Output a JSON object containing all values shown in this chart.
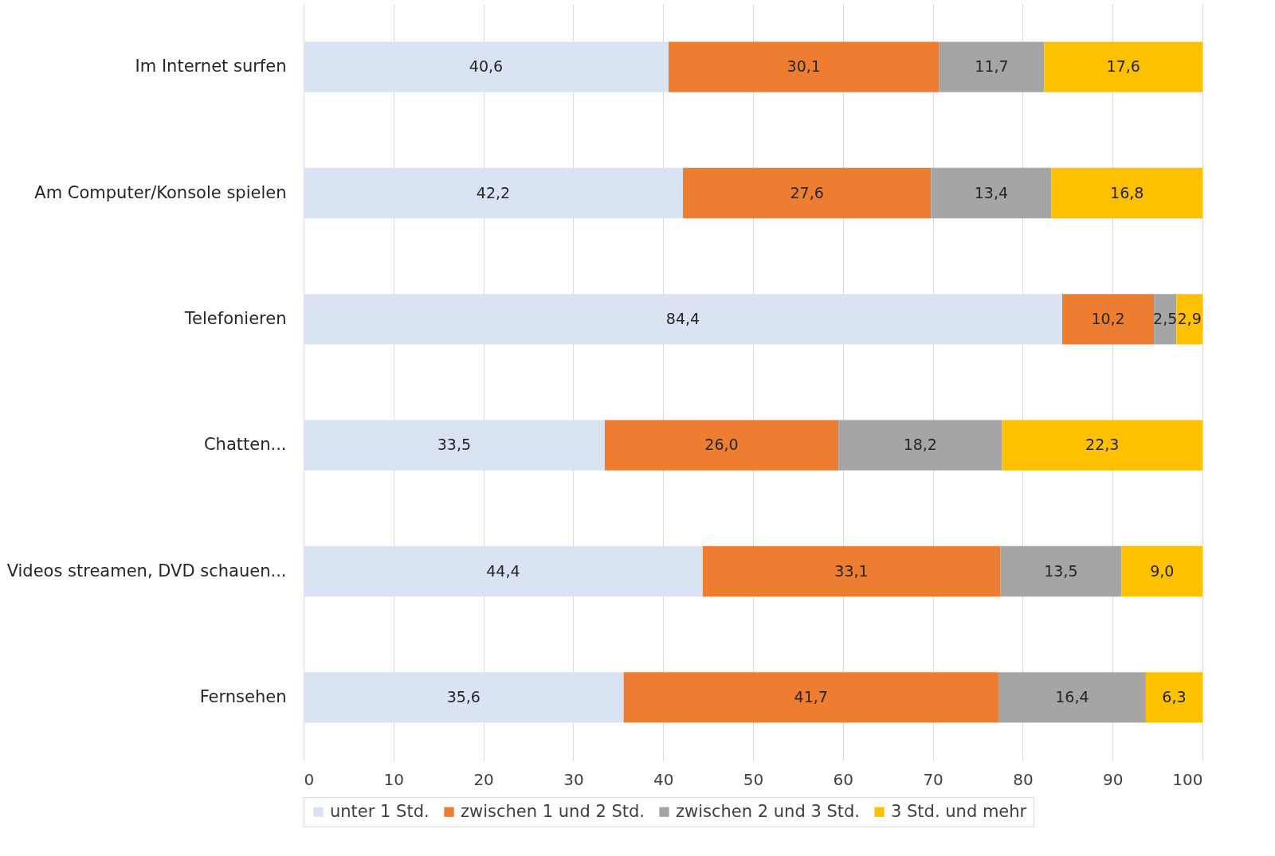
{
  "chart_data": {
    "type": "bar",
    "orientation": "horizontal",
    "stacked": true,
    "categories": [
      "Im Internet surfen",
      "Am Computer/Konsole spielen",
      "Telefonieren",
      "Chatten...",
      "Videos streamen, DVD schauen...",
      "Fernsehen"
    ],
    "series": [
      {
        "name": "unter 1 Std.",
        "color": "#dae3f3",
        "values": [
          40.6,
          42.2,
          84.4,
          33.5,
          44.4,
          35.6
        ],
        "value_labels": [
          "40,6",
          "42,2",
          "84,4",
          "33,5",
          "44,4",
          "35,6"
        ]
      },
      {
        "name": "zwischen 1 und 2 Std.",
        "color": "#ed7d31",
        "values": [
          30.1,
          27.6,
          10.2,
          26.0,
          33.1,
          41.7
        ],
        "value_labels": [
          "30,1",
          "27,6",
          "10,2",
          "26,0",
          "33,1",
          "41,7"
        ]
      },
      {
        "name": "zwischen 2 und 3 Std.",
        "color": "#a5a5a5",
        "values": [
          11.7,
          13.4,
          2.5,
          18.2,
          13.5,
          16.4
        ],
        "value_labels": [
          "11,7",
          "13,4",
          "2,5",
          "18,2",
          "13,5",
          "16,4"
        ]
      },
      {
        "name": "3 Std. und mehr",
        "color": "#ffc000",
        "values": [
          17.6,
          16.8,
          2.9,
          22.3,
          9.0,
          6.3
        ],
        "value_labels": [
          "17,6",
          "16,8",
          "2,9",
          "22,3",
          "9,0",
          "6,3"
        ]
      }
    ],
    "xlim": [
      0,
      100
    ],
    "xticks": [
      0,
      10,
      20,
      30,
      40,
      50,
      60,
      70,
      80,
      90,
      100
    ],
    "grid": "x",
    "legend": "bottom"
  }
}
